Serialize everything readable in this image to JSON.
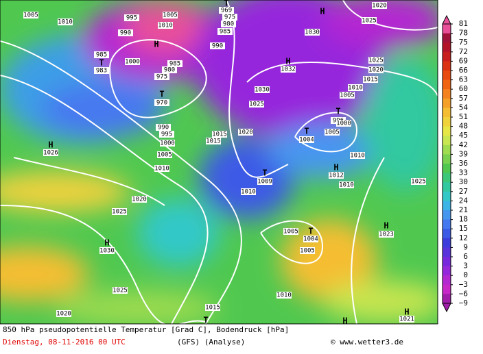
{
  "colorbar": {
    "labels": [
      "81",
      "78",
      "75",
      "72",
      "69",
      "66",
      "63",
      "60",
      "57",
      "54",
      "51",
      "48",
      "45",
      "42",
      "39",
      "36",
      "33",
      "30",
      "27",
      "24",
      "21",
      "18",
      "15",
      "12",
      "9",
      "6",
      "3",
      "0",
      "−3",
      "−6",
      "−9"
    ],
    "colors": [
      "#e8509a",
      "#a0143c",
      "#b4142a",
      "#c81e1e",
      "#dc3214",
      "#e84a10",
      "#f06414",
      "#f58220",
      "#f5a028",
      "#f5be32",
      "#f0d23c",
      "#e6e646",
      "#c8e650",
      "#a0dc50",
      "#78d250",
      "#50c850",
      "#3cc878",
      "#32c8a0",
      "#32c8c8",
      "#3cb4e6",
      "#4696f0",
      "#4678f0",
      "#3c5ae6",
      "#3c3cdc",
      "#5a32dc",
      "#7828dc",
      "#9628dc",
      "#b428d2",
      "#c828c8",
      "#a01eaa"
    ]
  },
  "map": {
    "pressure_labels": [
      "1005",
      "1010",
      "995",
      "990",
      "1005",
      "1010",
      "969",
      "975",
      "980",
      "985",
      "990",
      "1020",
      "1025",
      "1030",
      "985",
      "983",
      "1000",
      "980",
      "985",
      "975",
      "970",
      "990",
      "995",
      "1000",
      "1005",
      "1010",
      "1020",
      "1025",
      "1015",
      "1015",
      "1030",
      "1025",
      "1020",
      "1032",
      "1025",
      "1020",
      "1015",
      "1010",
      "1005",
      "996",
      "1000",
      "1005",
      "1004",
      "1010",
      "1012",
      "1010",
      "1025",
      "1009",
      "1010",
      "1026",
      "1030",
      "1023",
      "1005",
      "1004",
      "1005",
      "1025",
      "1010",
      "1015",
      "1020",
      "1021"
    ],
    "centers": [
      "H",
      "T",
      "H",
      "T",
      "T",
      "H",
      "T",
      "T",
      "H",
      "T",
      "H",
      "H",
      "H",
      "T",
      "H",
      "T",
      "H"
    ]
  },
  "footer": {
    "title": "850 hPa pseudopotentielle Temperatur [Grad C], Bodendruck [hPa]",
    "date": "Dienstag, 08-11-2016  00 UTC",
    "model": "(GFS)  (Analyse)",
    "credit": "© www.wetter3.de"
  }
}
